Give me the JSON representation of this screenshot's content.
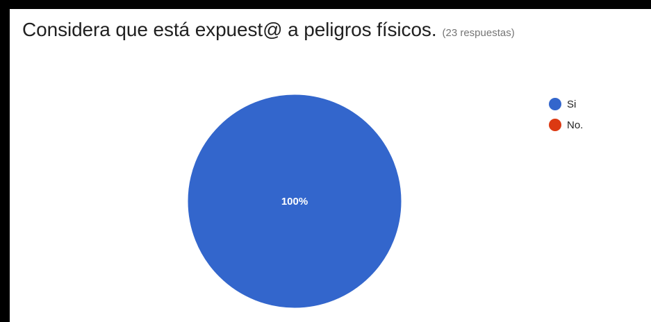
{
  "header": {
    "title": "Considera que está expuest@ a peligros físicos.",
    "response_count": "(23 respuestas)"
  },
  "chart_data": {
    "type": "pie",
    "title": "Considera que está expuest@ a peligros físicos.",
    "categories": [
      "Si",
      "No."
    ],
    "values": [
      100,
      0
    ],
    "data_labels": [
      "100%",
      ""
    ],
    "colors": [
      "#3366cc",
      "#dc3912"
    ],
    "legend_position": "right"
  }
}
